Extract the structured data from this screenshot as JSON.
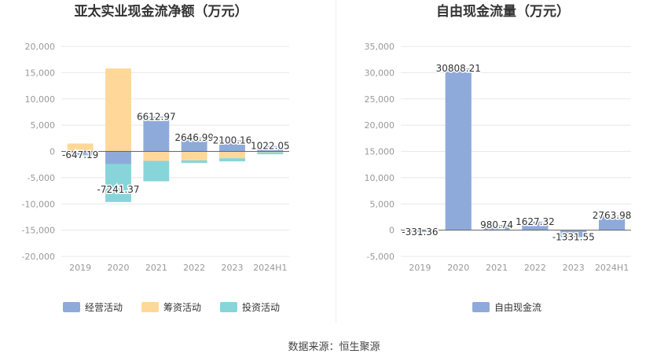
{
  "source_text": "数据来源：恒生聚源",
  "chart_data": [
    {
      "type": "bar",
      "stacked": true,
      "title": "亚太实业现金流净额（万元）",
      "categories": [
        "2019",
        "2020",
        "2021",
        "2022",
        "2023",
        "2024H1"
      ],
      "ylim": [
        -20000,
        20000
      ],
      "yticks": [
        -20000,
        -15000,
        -10000,
        -5000,
        0,
        5000,
        10000,
        15000,
        20000
      ],
      "ytick_labels": [
        "-20,000",
        "-15,000",
        "-10,000",
        "-5,000",
        "0",
        "5,000",
        "10,000",
        "15,000",
        "20,000"
      ],
      "grid": true,
      "legend": "bottom",
      "series": [
        {
          "name": "经营活动",
          "color": "#8eaadb",
          "values": [
            -647.19,
            -2400,
            6612.97,
            2646.99,
            2100.16,
            1022.05
          ]
        },
        {
          "name": "筹资活动",
          "color": "#ffd899",
          "values": [
            1500,
            15800,
            -1800,
            -1700,
            -1300,
            -150
          ]
        },
        {
          "name": "投资活动",
          "color": "#87d5da",
          "values": [
            -100,
            -7241.37,
            -3900,
            -500,
            -600,
            -400
          ]
        }
      ],
      "data_labels": [
        "-647.19",
        "-7241.37",
        "6612.97",
        "2646.99",
        "2100.16",
        "1022.05"
      ],
      "label_values": [
        -647.19,
        -7241.37,
        6612.97,
        2646.99,
        2100.16,
        1022.05
      ]
    },
    {
      "type": "bar",
      "title": "自由现金流量（万元）",
      "categories": [
        "2019",
        "2020",
        "2021",
        "2022",
        "2023",
        "2024H1"
      ],
      "ylim": [
        -5000,
        35000
      ],
      "yticks": [
        -5000,
        0,
        5000,
        10000,
        15000,
        20000,
        25000,
        30000,
        35000
      ],
      "ytick_labels": [
        "-5,000",
        "0",
        "5,000",
        "10,000",
        "15,000",
        "20,000",
        "25,000",
        "30,000",
        "35,000"
      ],
      "grid": true,
      "legend": "bottom",
      "series": [
        {
          "name": "自由现金流",
          "color": "#8eaadb",
          "values": [
            -331.36,
            30808.21,
            980.74,
            1627.32,
            -1331.55,
            2763.98
          ]
        }
      ],
      "data_labels": [
        "-331.36",
        "30808.21",
        "980.74",
        "1627.32",
        "-1331.55",
        "2763.98"
      ]
    }
  ]
}
